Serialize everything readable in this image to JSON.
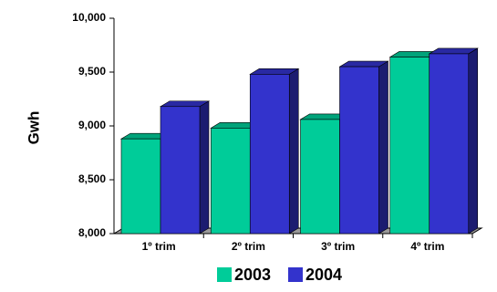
{
  "chart_data": {
    "type": "bar",
    "title": "",
    "xlabel": "",
    "ylabel": "Gwh",
    "ylim": [
      8000,
      10000
    ],
    "yticks": [
      8000,
      8500,
      9000,
      9500,
      10000
    ],
    "ytick_labels": [
      "8,000",
      "8,500",
      "9,000",
      "9,500",
      "10,000"
    ],
    "categories": [
      "1º trim",
      "2º trim",
      "3º trim",
      "4º trim"
    ],
    "series": [
      {
        "name": "2003",
        "values": [
          8880,
          8980,
          9060,
          9640
        ],
        "color": "#00CC99"
      },
      {
        "name": "2004",
        "values": [
          9180,
          9480,
          9550,
          9670
        ],
        "color": "#3333CC"
      }
    ],
    "three_d": true,
    "grid": false,
    "legend_position": "bottom"
  }
}
